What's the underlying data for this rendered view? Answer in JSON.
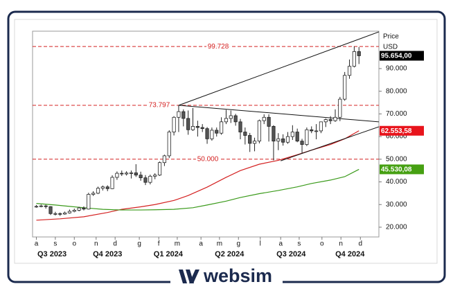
{
  "chart_data": {
    "type": "candlestick",
    "header": [
      "Price",
      "USD"
    ],
    "open": [
      29000,
      29200,
      29400,
      29100,
      26000,
      26000,
      25800,
      26300,
      27000,
      27500,
      28500,
      28000,
      34500,
      35000,
      37200,
      37800,
      37000,
      42000,
      43800,
      43500,
      43900,
      44000,
      43000,
      41800,
      39800,
      42500,
      43000,
      48500,
      51500,
      62000,
      68500,
      71000,
      68000,
      63000,
      64500,
      64000,
      63500,
      59000,
      62800,
      61500,
      66500,
      68000,
      69200,
      66500,
      62000,
      60500,
      57000,
      58000,
      67000,
      68500,
      64500,
      58000,
      59000,
      57500,
      60000,
      62000,
      58000,
      56500,
      63000,
      62500,
      62500,
      66500,
      67500,
      67000,
      68500,
      76500,
      87000,
      91000,
      97500
    ],
    "high": [
      29800,
      30000,
      29900,
      29300,
      26800,
      26500,
      26900,
      27800,
      28200,
      29000,
      29200,
      35200,
      35900,
      37900,
      38400,
      38500,
      42900,
      44600,
      45000,
      44700,
      45000,
      47800,
      44500,
      43000,
      43200,
      43800,
      49000,
      52000,
      62800,
      69000,
      73800,
      72000,
      71500,
      72600,
      67000,
      65500,
      64200,
      64000,
      64000,
      68500,
      71800,
      71500,
      70000,
      67800,
      64000,
      61600,
      59500,
      67500,
      69800,
      69800,
      65000,
      61500,
      61000,
      62000,
      65000,
      63500,
      59000,
      64000,
      64500,
      65500,
      66500,
      68000,
      69000,
      72000,
      77500,
      88500,
      94000,
      99800,
      99500
    ],
    "low": [
      28600,
      28800,
      28200,
      25400,
      25200,
      25000,
      25500,
      26000,
      26600,
      27000,
      27400,
      27800,
      33800,
      34600,
      36200,
      35900,
      36800,
      40900,
      42600,
      42800,
      41500,
      42200,
      40500,
      38600,
      38900,
      41200,
      42600,
      47000,
      50500,
      60500,
      62000,
      64500,
      60800,
      62500,
      60000,
      62000,
      56800,
      58200,
      60000,
      60800,
      65500,
      66000,
      64800,
      58800,
      56500,
      53200,
      53500,
      57000,
      65500,
      57800,
      49500,
      54000,
      56000,
      56800,
      58500,
      57500,
      52600,
      55800,
      61500,
      58800,
      61500,
      64200,
      65500,
      66500,
      66800,
      75800,
      85500,
      90500,
      92000
    ],
    "close": [
      29200,
      29400,
      29100,
      26000,
      26000,
      25800,
      26300,
      27000,
      27500,
      28500,
      28000,
      34500,
      35000,
      37200,
      37800,
      37000,
      42000,
      43800,
      43500,
      43900,
      44000,
      43000,
      41800,
      39800,
      42500,
      43000,
      48500,
      51500,
      62000,
      68500,
      71000,
      68000,
      63000,
      64500,
      64000,
      63500,
      59000,
      62800,
      61500,
      66500,
      68000,
      69200,
      66500,
      62000,
      60500,
      57000,
      58000,
      67000,
      68500,
      64500,
      58000,
      59000,
      57500,
      60000,
      62000,
      58000,
      56500,
      63000,
      62500,
      62500,
      66500,
      67500,
      67000,
      68500,
      76500,
      87000,
      91000,
      97500,
      95654
    ],
    "series": [
      {
        "color": "#d42020",
        "x": [
          0,
          5,
          10,
          15,
          18,
          22,
          25,
          29,
          32,
          36,
          40,
          43,
          47,
          51,
          55,
          58,
          62,
          65,
          68
        ],
        "values": [
          23100,
          23700,
          24600,
          26500,
          27900,
          29000,
          30000,
          31800,
          34000,
          37700,
          42000,
          45000,
          47800,
          49500,
          52000,
          54000,
          56500,
          59000,
          62553.58
        ]
      },
      {
        "color": "#3a9a1a",
        "x": [
          0,
          4,
          7,
          10,
          14,
          18,
          22,
          25,
          29,
          33,
          36,
          40,
          43,
          47,
          51,
          55,
          58,
          62,
          65,
          68
        ],
        "values": [
          30500,
          29800,
          29200,
          28600,
          27900,
          27600,
          27600,
          27700,
          27900,
          28600,
          29800,
          31500,
          33100,
          34800,
          36200,
          37800,
          39300,
          40800,
          42300,
          45530.08
        ]
      }
    ],
    "trendlines": [
      {
        "x": [
          30,
          72.2
        ],
        "values": [
          73797,
          106200
        ]
      },
      {
        "x": [
          30,
          72.2
        ],
        "values": [
          73797,
          66500
        ]
      },
      {
        "x": [
          51.5,
          72.2
        ],
        "values": [
          49300,
          64300
        ]
      }
    ],
    "levels": [
      {
        "value": 99728,
        "label": "99.728"
      },
      {
        "value": 73797,
        "label": "73.797"
      },
      {
        "value": 50000,
        "label": "50.000"
      }
    ],
    "price_labels": [
      {
        "value": 95654,
        "label": "95.654,00",
        "color": "#000000"
      },
      {
        "value": 62553.58,
        "label": "62.553,58",
        "color": "#e8141c"
      },
      {
        "value": 45530.08,
        "label": "45.530,08",
        "color": "#46a012"
      }
    ],
    "ylim": [
      15700,
      106500
    ],
    "yticks": [
      {
        "value": 20000,
        "label": "20.000"
      },
      {
        "value": 30000,
        "label": "30.000"
      },
      {
        "value": 40000,
        "label": "40.000"
      },
      {
        "value": 50000,
        "label": "50.000"
      },
      {
        "value": 60000,
        "label": "60.000"
      },
      {
        "value": 70000,
        "label": "70.000"
      },
      {
        "value": 80000,
        "label": "80.000"
      },
      {
        "value": 90000,
        "label": "90.000"
      }
    ],
    "xlim": [
      -0.8,
      72.2
    ],
    "xticks": [
      {
        "value": 0,
        "label": "a"
      },
      {
        "value": 4,
        "label": "s"
      },
      {
        "value": 8,
        "label": "o"
      },
      {
        "value": 12.6,
        "label": "n"
      },
      {
        "value": 16.6,
        "label": "d"
      },
      {
        "value": 21.7,
        "label": "g"
      },
      {
        "value": 25.8,
        "label": "f"
      },
      {
        "value": 29.7,
        "label": "m"
      },
      {
        "value": 34.7,
        "label": "a"
      },
      {
        "value": 38.6,
        "label": "m"
      },
      {
        "value": 42.6,
        "label": "g"
      },
      {
        "value": 47.2,
        "label": "l"
      },
      {
        "value": 51.5,
        "label": "a"
      },
      {
        "value": 55.4,
        "label": "s"
      },
      {
        "value": 60.2,
        "label": "o"
      },
      {
        "value": 64.2,
        "label": "n"
      },
      {
        "value": 68.3,
        "label": "d"
      }
    ],
    "quarters": [
      {
        "value": 3.3,
        "label": "Q3 2023"
      },
      {
        "value": 15,
        "label": "Q4 2023"
      },
      {
        "value": 27.8,
        "label": "Q1 2024"
      },
      {
        "value": 40.7,
        "label": "Q2 2024"
      },
      {
        "value": 53.7,
        "label": "Q3 2024"
      },
      {
        "value": 66.1,
        "label": "Q4 2024"
      }
    ]
  },
  "brand": "websim"
}
